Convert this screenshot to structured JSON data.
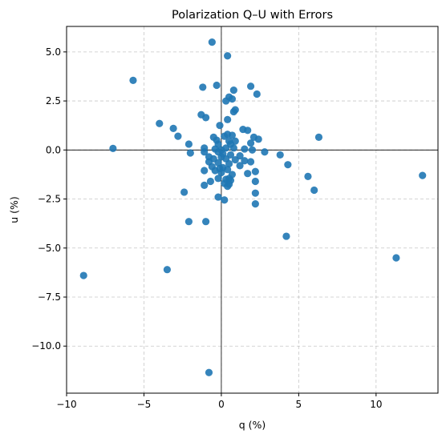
{
  "chart_data": {
    "type": "scatter",
    "title": "Polarization Q–U with Errors",
    "xlabel": "q (%)",
    "ylabel": "u (%)",
    "xlim": [
      -10,
      14
    ],
    "ylim": [
      -12.4,
      6.3
    ],
    "xticks": [
      -10,
      -5,
      0,
      5,
      10
    ],
    "yticks": [
      5.0,
      2.5,
      0.0,
      -2.5,
      -5.0,
      -7.5,
      -10.0
    ],
    "xtick_labels": [
      "−10",
      "−5",
      "0",
      "5",
      "10"
    ],
    "ytick_labels": [
      "5.0",
      "2.5",
      "0.0",
      "−2.5",
      "−5.0",
      "−7.5",
      "−10.0"
    ],
    "grid": true,
    "zero_lines": true,
    "color": "#1f77b4",
    "series": [
      {
        "points": [
          [
            -0.6,
            5.5
          ],
          [
            0.4,
            4.8
          ],
          [
            -5.7,
            3.55
          ],
          [
            -1.2,
            3.2
          ],
          [
            -0.3,
            3.3
          ],
          [
            1.9,
            3.25
          ],
          [
            0.8,
            3.05
          ],
          [
            2.3,
            2.85
          ],
          [
            0.5,
            2.7
          ],
          [
            0.7,
            2.6
          ],
          [
            0.3,
            2.5
          ],
          [
            0.9,
            2.05
          ],
          [
            0.8,
            1.95
          ],
          [
            -1.3,
            1.8
          ],
          [
            -1.0,
            1.65
          ],
          [
            0.4,
            1.55
          ],
          [
            -4.0,
            1.35
          ],
          [
            -0.1,
            1.25
          ],
          [
            -3.1,
            1.1
          ],
          [
            1.4,
            1.05
          ],
          [
            1.7,
            1.0
          ],
          [
            -2.8,
            0.7
          ],
          [
            -0.5,
            0.65
          ],
          [
            0.2,
            0.7
          ],
          [
            0.4,
            0.8
          ],
          [
            0.7,
            0.75
          ],
          [
            2.1,
            0.65
          ],
          [
            6.3,
            0.65
          ],
          [
            2.4,
            0.55
          ],
          [
            -0.3,
            0.5
          ],
          [
            0.5,
            0.45
          ],
          [
            0.9,
            0.45
          ],
          [
            1.9,
            0.35
          ],
          [
            -2.1,
            0.3
          ],
          [
            -0.2,
            0.3
          ],
          [
            0.6,
            0.3
          ],
          [
            -7.0,
            0.08
          ],
          [
            -1.1,
            0.1
          ],
          [
            -0.4,
            0.05
          ],
          [
            0.0,
            0.0
          ],
          [
            0.3,
            0.1
          ],
          [
            0.8,
            0.1
          ],
          [
            1.5,
            0.05
          ],
          [
            2.0,
            0.0
          ],
          [
            2.8,
            -0.1
          ],
          [
            -2.0,
            -0.15
          ],
          [
            -1.1,
            -0.1
          ],
          [
            -0.2,
            -0.1
          ],
          [
            0.1,
            -0.2
          ],
          [
            0.6,
            -0.25
          ],
          [
            1.2,
            -0.3
          ],
          [
            -0.8,
            -0.35
          ],
          [
            0.0,
            -0.35
          ],
          [
            3.8,
            -0.25
          ],
          [
            -0.5,
            -0.45
          ],
          [
            0.3,
            -0.45
          ],
          [
            0.9,
            -0.5
          ],
          [
            1.5,
            -0.55
          ],
          [
            1.9,
            -0.6
          ],
          [
            -0.8,
            -0.6
          ],
          [
            -0.2,
            -0.65
          ],
          [
            0.5,
            -0.7
          ],
          [
            4.3,
            -0.75
          ],
          [
            1.2,
            -0.8
          ],
          [
            -0.6,
            -0.85
          ],
          [
            0.1,
            -0.9
          ],
          [
            -0.1,
            -0.95
          ],
          [
            0.4,
            -1.0
          ],
          [
            -1.1,
            -1.05
          ],
          [
            -0.4,
            -1.05
          ],
          [
            2.2,
            -1.1
          ],
          [
            0.0,
            -1.15
          ],
          [
            1.7,
            -1.2
          ],
          [
            0.7,
            -1.25
          ],
          [
            13.0,
            -1.3
          ],
          [
            5.6,
            -1.35
          ],
          [
            0.5,
            -1.45
          ],
          [
            -0.2,
            -1.45
          ],
          [
            0.3,
            -1.5
          ],
          [
            0.6,
            -1.55
          ],
          [
            2.2,
            -1.6
          ],
          [
            -0.7,
            -1.6
          ],
          [
            0.2,
            -1.7
          ],
          [
            0.5,
            -1.75
          ],
          [
            -1.1,
            -1.8
          ],
          [
            0.4,
            -1.85
          ],
          [
            6.0,
            -2.05
          ],
          [
            -2.4,
            -2.15
          ],
          [
            2.2,
            -2.2
          ],
          [
            -0.2,
            -2.4
          ],
          [
            0.2,
            -2.55
          ],
          [
            2.2,
            -2.75
          ],
          [
            -2.1,
            -3.65
          ],
          [
            -1.0,
            -3.65
          ],
          [
            4.2,
            -4.4
          ],
          [
            11.3,
            -5.5
          ],
          [
            -3.5,
            -6.1
          ],
          [
            -8.9,
            -6.4
          ],
          [
            -0.8,
            -11.35
          ]
        ]
      }
    ]
  }
}
